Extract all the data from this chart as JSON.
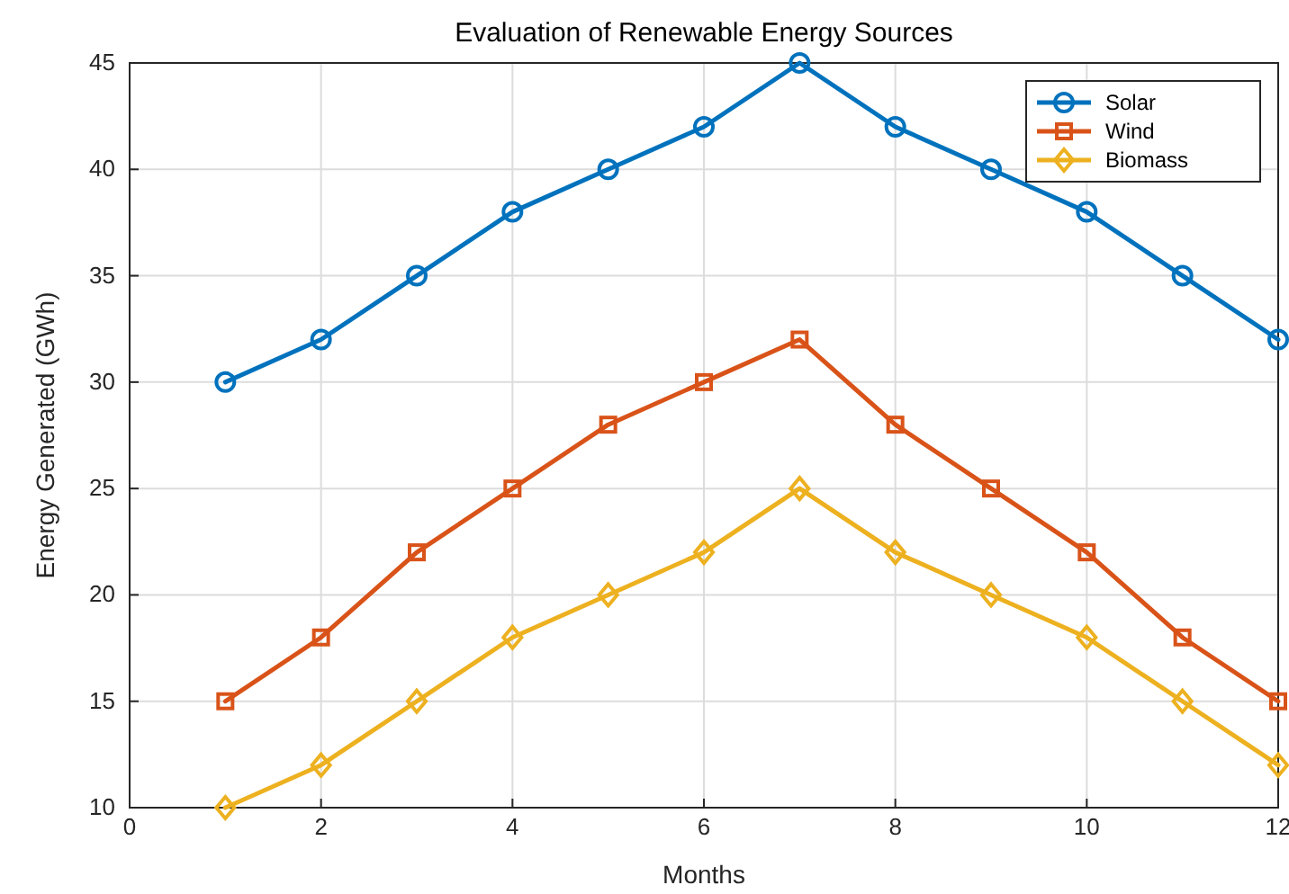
{
  "chart_data": {
    "type": "line",
    "title": "Evaluation of Renewable Energy Sources",
    "xlabel": "Months",
    "ylabel": "Energy Generated (GWh)",
    "x": [
      1,
      2,
      3,
      4,
      5,
      6,
      7,
      8,
      9,
      10,
      11,
      12
    ],
    "series": [
      {
        "name": "Solar",
        "color": "#0072bd",
        "marker": "circle",
        "values": [
          30,
          32,
          35,
          38,
          40,
          42,
          45,
          42,
          40,
          38,
          35,
          32
        ]
      },
      {
        "name": "Wind",
        "color": "#d95319",
        "marker": "square",
        "values": [
          15,
          18,
          22,
          25,
          28,
          30,
          32,
          28,
          25,
          22,
          18,
          15
        ]
      },
      {
        "name": "Biomass",
        "color": "#edb120",
        "marker": "diamond",
        "values": [
          10,
          12,
          15,
          18,
          20,
          22,
          25,
          22,
          20,
          18,
          15,
          12
        ]
      }
    ],
    "xlim": [
      0,
      12
    ],
    "xticks": [
      0,
      2,
      4,
      6,
      8,
      10,
      12
    ],
    "ylim": [
      10,
      45
    ],
    "yticks": [
      10,
      15,
      20,
      25,
      30,
      35,
      40,
      45
    ],
    "grid": true,
    "legend": "top right",
    "line_style": "solid"
  }
}
